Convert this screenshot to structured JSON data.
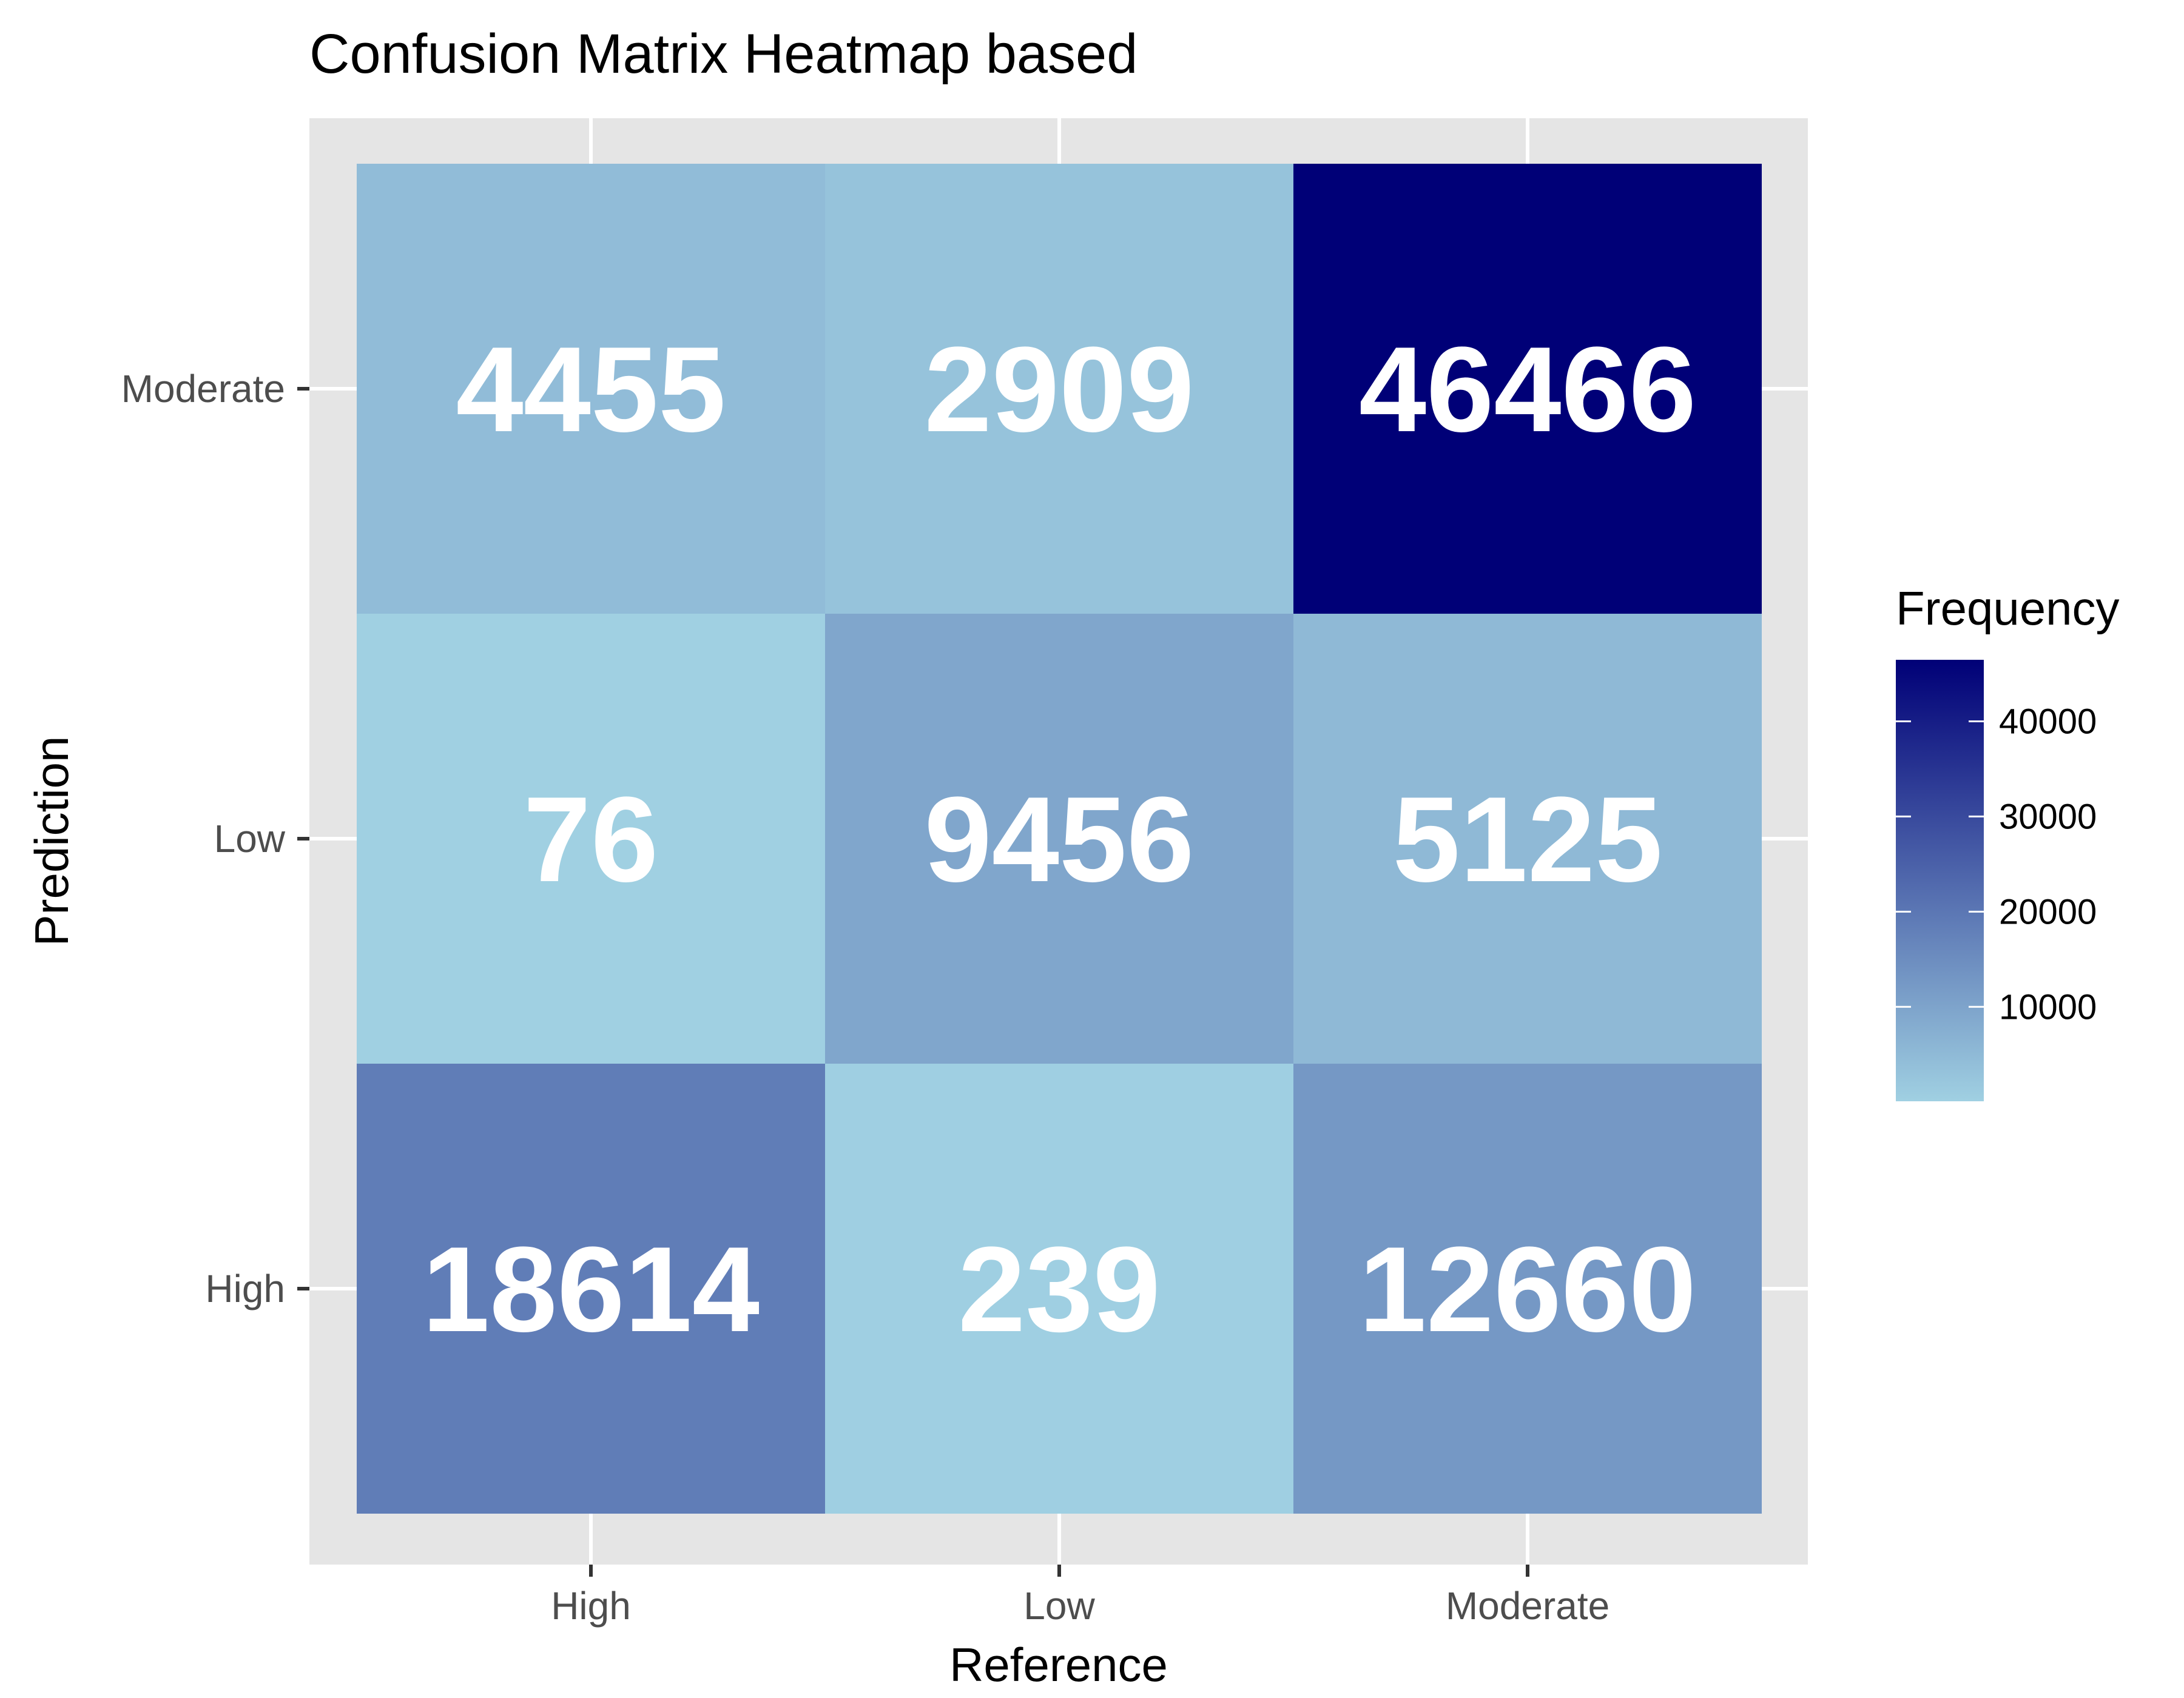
{
  "chart_data": {
    "type": "heatmap",
    "title": "Confusion Matrix Heatmap based",
    "xlabel": "Reference",
    "ylabel": "Prediction",
    "x_categories": [
      "High",
      "Low",
      "Moderate"
    ],
    "y_categories": [
      "High",
      "Low",
      "Moderate"
    ],
    "cells": [
      {
        "reference": "High",
        "prediction": "Moderate",
        "value": 4455,
        "label": "4455"
      },
      {
        "reference": "Low",
        "prediction": "Moderate",
        "value": 2909,
        "label": "2909"
      },
      {
        "reference": "Moderate",
        "prediction": "Moderate",
        "value": 46466,
        "label": "46466"
      },
      {
        "reference": "High",
        "prediction": "Low",
        "value": 76,
        "label": "76"
      },
      {
        "reference": "Low",
        "prediction": "Low",
        "value": 9456,
        "label": "9456"
      },
      {
        "reference": "Moderate",
        "prediction": "Low",
        "value": 5125,
        "label": "5125"
      },
      {
        "reference": "High",
        "prediction": "High",
        "value": 18614,
        "label": "18614"
      },
      {
        "reference": "Low",
        "prediction": "High",
        "value": 239,
        "label": "239"
      },
      {
        "reference": "Moderate",
        "prediction": "High",
        "value": 12660,
        "label": "12660"
      }
    ],
    "legend": {
      "title": "Frequency",
      "position": "right",
      "ticks": [
        10000,
        20000,
        30000,
        40000
      ],
      "tick_labels": [
        "10000",
        "20000",
        "30000",
        "40000"
      ],
      "min": 76,
      "max": 46466,
      "low_color": "#a0d0e2",
      "high_color": "#000077"
    },
    "panel_background": "#e5e5e5",
    "grid": true
  }
}
